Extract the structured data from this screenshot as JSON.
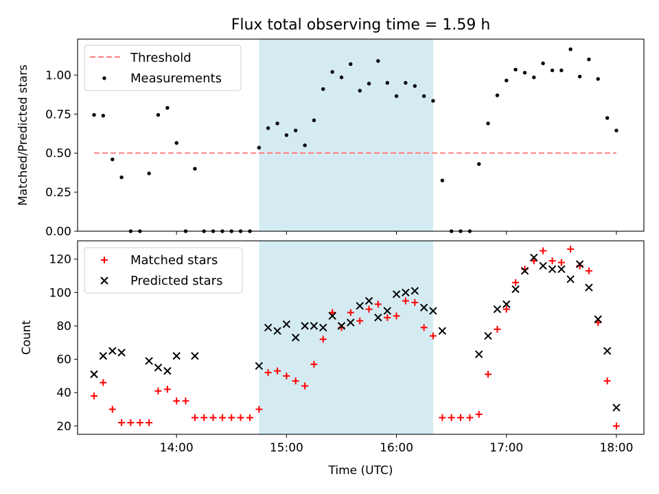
{
  "chart_data": [
    {
      "type": "scatter",
      "title": "Flux total observing time = 1.59 h",
      "ylabel": "Matched/Predicted stars",
      "xlabel": "",
      "xlim": [
        13.1,
        18.25
      ],
      "ylim": [
        0,
        1.23
      ],
      "yticks": [
        0.0,
        0.25,
        0.5,
        0.75,
        1.0
      ],
      "ytick_labels": [
        "0.00",
        "0.25",
        "0.50",
        "0.75",
        "1.00"
      ],
      "shaded_interval": {
        "x": [
          14.75,
          16.333
        ],
        "color": "#add8e6"
      },
      "legend": {
        "placement": "top-left",
        "entries": [
          "Threshold",
          "Measurements"
        ]
      },
      "threshold": {
        "name": "Threshold",
        "x": [
          13.25,
          18.0
        ],
        "y": 0.5,
        "color": "#ff7f7f",
        "style": "dashed"
      },
      "series": [
        {
          "name": "Measurements",
          "color": "#000000",
          "marker": "dot",
          "x": [
            13.25,
            13.333,
            13.417,
            13.5,
            13.583,
            13.667,
            13.75,
            13.833,
            13.917,
            14.0,
            14.083,
            14.167,
            14.25,
            14.333,
            14.417,
            14.5,
            14.583,
            14.667,
            14.75,
            14.833,
            14.917,
            15.0,
            15.083,
            15.167,
            15.25,
            15.333,
            15.417,
            15.5,
            15.583,
            15.667,
            15.75,
            15.833,
            15.917,
            16.0,
            16.083,
            16.167,
            16.25,
            16.333,
            16.417,
            16.5,
            16.583,
            16.667,
            16.75,
            16.833,
            16.917,
            17.0,
            17.083,
            17.167,
            17.25,
            17.333,
            17.417,
            17.5,
            17.583,
            17.667,
            17.75,
            17.833,
            17.917,
            18.0
          ],
          "y": [
            0.745,
            0.74,
            0.46,
            0.345,
            0.0,
            0.0,
            0.37,
            0.745,
            0.79,
            0.565,
            0.0,
            0.4,
            0.0,
            0.0,
            0.0,
            0.0,
            0.0,
            0.0,
            0.535,
            0.66,
            0.69,
            0.615,
            0.645,
            0.55,
            0.71,
            0.91,
            1.02,
            0.985,
            1.07,
            0.9,
            0.945,
            1.09,
            0.95,
            0.865,
            0.95,
            0.93,
            0.865,
            0.835,
            0.325,
            0.0,
            0.0,
            0.0,
            0.43,
            0.69,
            0.87,
            0.965,
            1.035,
            1.015,
            0.985,
            1.075,
            1.03,
            1.03,
            1.165,
            0.99,
            1.1,
            0.975,
            0.725,
            0.645
          ]
        }
      ]
    },
    {
      "type": "scatter",
      "title": "",
      "xlabel": "Time (UTC)",
      "ylabel": "Count",
      "xlim": [
        13.1,
        18.25
      ],
      "ylim": [
        15,
        131
      ],
      "xticks": [
        14,
        15,
        16,
        17,
        18
      ],
      "xtick_labels": [
        "14:00",
        "15:00",
        "16:00",
        "17:00",
        "18:00"
      ],
      "yticks": [
        20,
        40,
        60,
        80,
        100,
        120
      ],
      "ytick_labels": [
        "20",
        "40",
        "60",
        "80",
        "100",
        "120"
      ],
      "shaded_interval": {
        "x": [
          14.75,
          16.333
        ],
        "color": "#add8e6"
      },
      "legend": {
        "placement": "top-left",
        "entries": [
          "Matched stars",
          "Predicted stars"
        ]
      },
      "series": [
        {
          "name": "Matched stars",
          "color": "#ff0000",
          "marker": "plus",
          "x": [
            13.25,
            13.333,
            13.417,
            13.5,
            13.583,
            13.667,
            13.75,
            13.833,
            13.917,
            14.0,
            14.083,
            14.167,
            14.25,
            14.333,
            14.417,
            14.5,
            14.583,
            14.667,
            14.75,
            14.833,
            14.917,
            15.0,
            15.083,
            15.167,
            15.25,
            15.333,
            15.417,
            15.5,
            15.583,
            15.667,
            15.75,
            15.833,
            15.917,
            16.0,
            16.083,
            16.167,
            16.25,
            16.333,
            16.417,
            16.5,
            16.583,
            16.667,
            16.75,
            16.833,
            16.917,
            17.0,
            17.083,
            17.167,
            17.25,
            17.333,
            17.417,
            17.5,
            17.583,
            17.667,
            17.75,
            17.833,
            17.917,
            18.0
          ],
          "y": [
            38,
            46,
            30,
            22,
            22,
            22,
            22,
            41,
            42,
            35,
            35,
            25,
            25,
            25,
            25,
            25,
            25,
            25,
            30,
            52,
            53,
            50,
            47,
            44,
            57,
            72,
            88,
            79,
            88,
            83,
            90,
            93,
            85,
            86,
            95,
            94,
            79,
            74,
            25,
            25,
            25,
            25,
            27,
            51,
            78,
            90,
            106,
            114,
            119,
            125,
            119,
            118,
            126,
            116,
            113,
            82,
            47,
            20
          ]
        },
        {
          "name": "Predicted stars",
          "color": "#000000",
          "marker": "x",
          "x": [
            13.25,
            13.333,
            13.417,
            13.5,
            13.75,
            13.833,
            13.917,
            14.0,
            14.167,
            14.75,
            14.833,
            14.917,
            15.0,
            15.083,
            15.167,
            15.25,
            15.333,
            15.417,
            15.5,
            15.583,
            15.667,
            15.75,
            15.833,
            15.917,
            16.0,
            16.083,
            16.167,
            16.25,
            16.333,
            16.417,
            16.75,
            16.833,
            16.917,
            17.0,
            17.083,
            17.167,
            17.25,
            17.333,
            17.417,
            17.5,
            17.583,
            17.667,
            17.75,
            17.833,
            17.917,
            18.0
          ],
          "y": [
            51,
            62,
            65,
            64,
            59,
            55,
            53,
            62,
            62,
            56,
            79,
            77,
            81,
            73,
            80,
            80,
            79,
            86,
            80,
            82,
            92,
            95,
            85,
            89,
            99,
            100,
            101,
            91,
            89,
            77,
            63,
            74,
            90,
            93,
            102,
            113,
            121,
            116,
            114,
            114,
            108,
            117,
            103,
            84,
            65,
            31
          ]
        }
      ]
    }
  ]
}
